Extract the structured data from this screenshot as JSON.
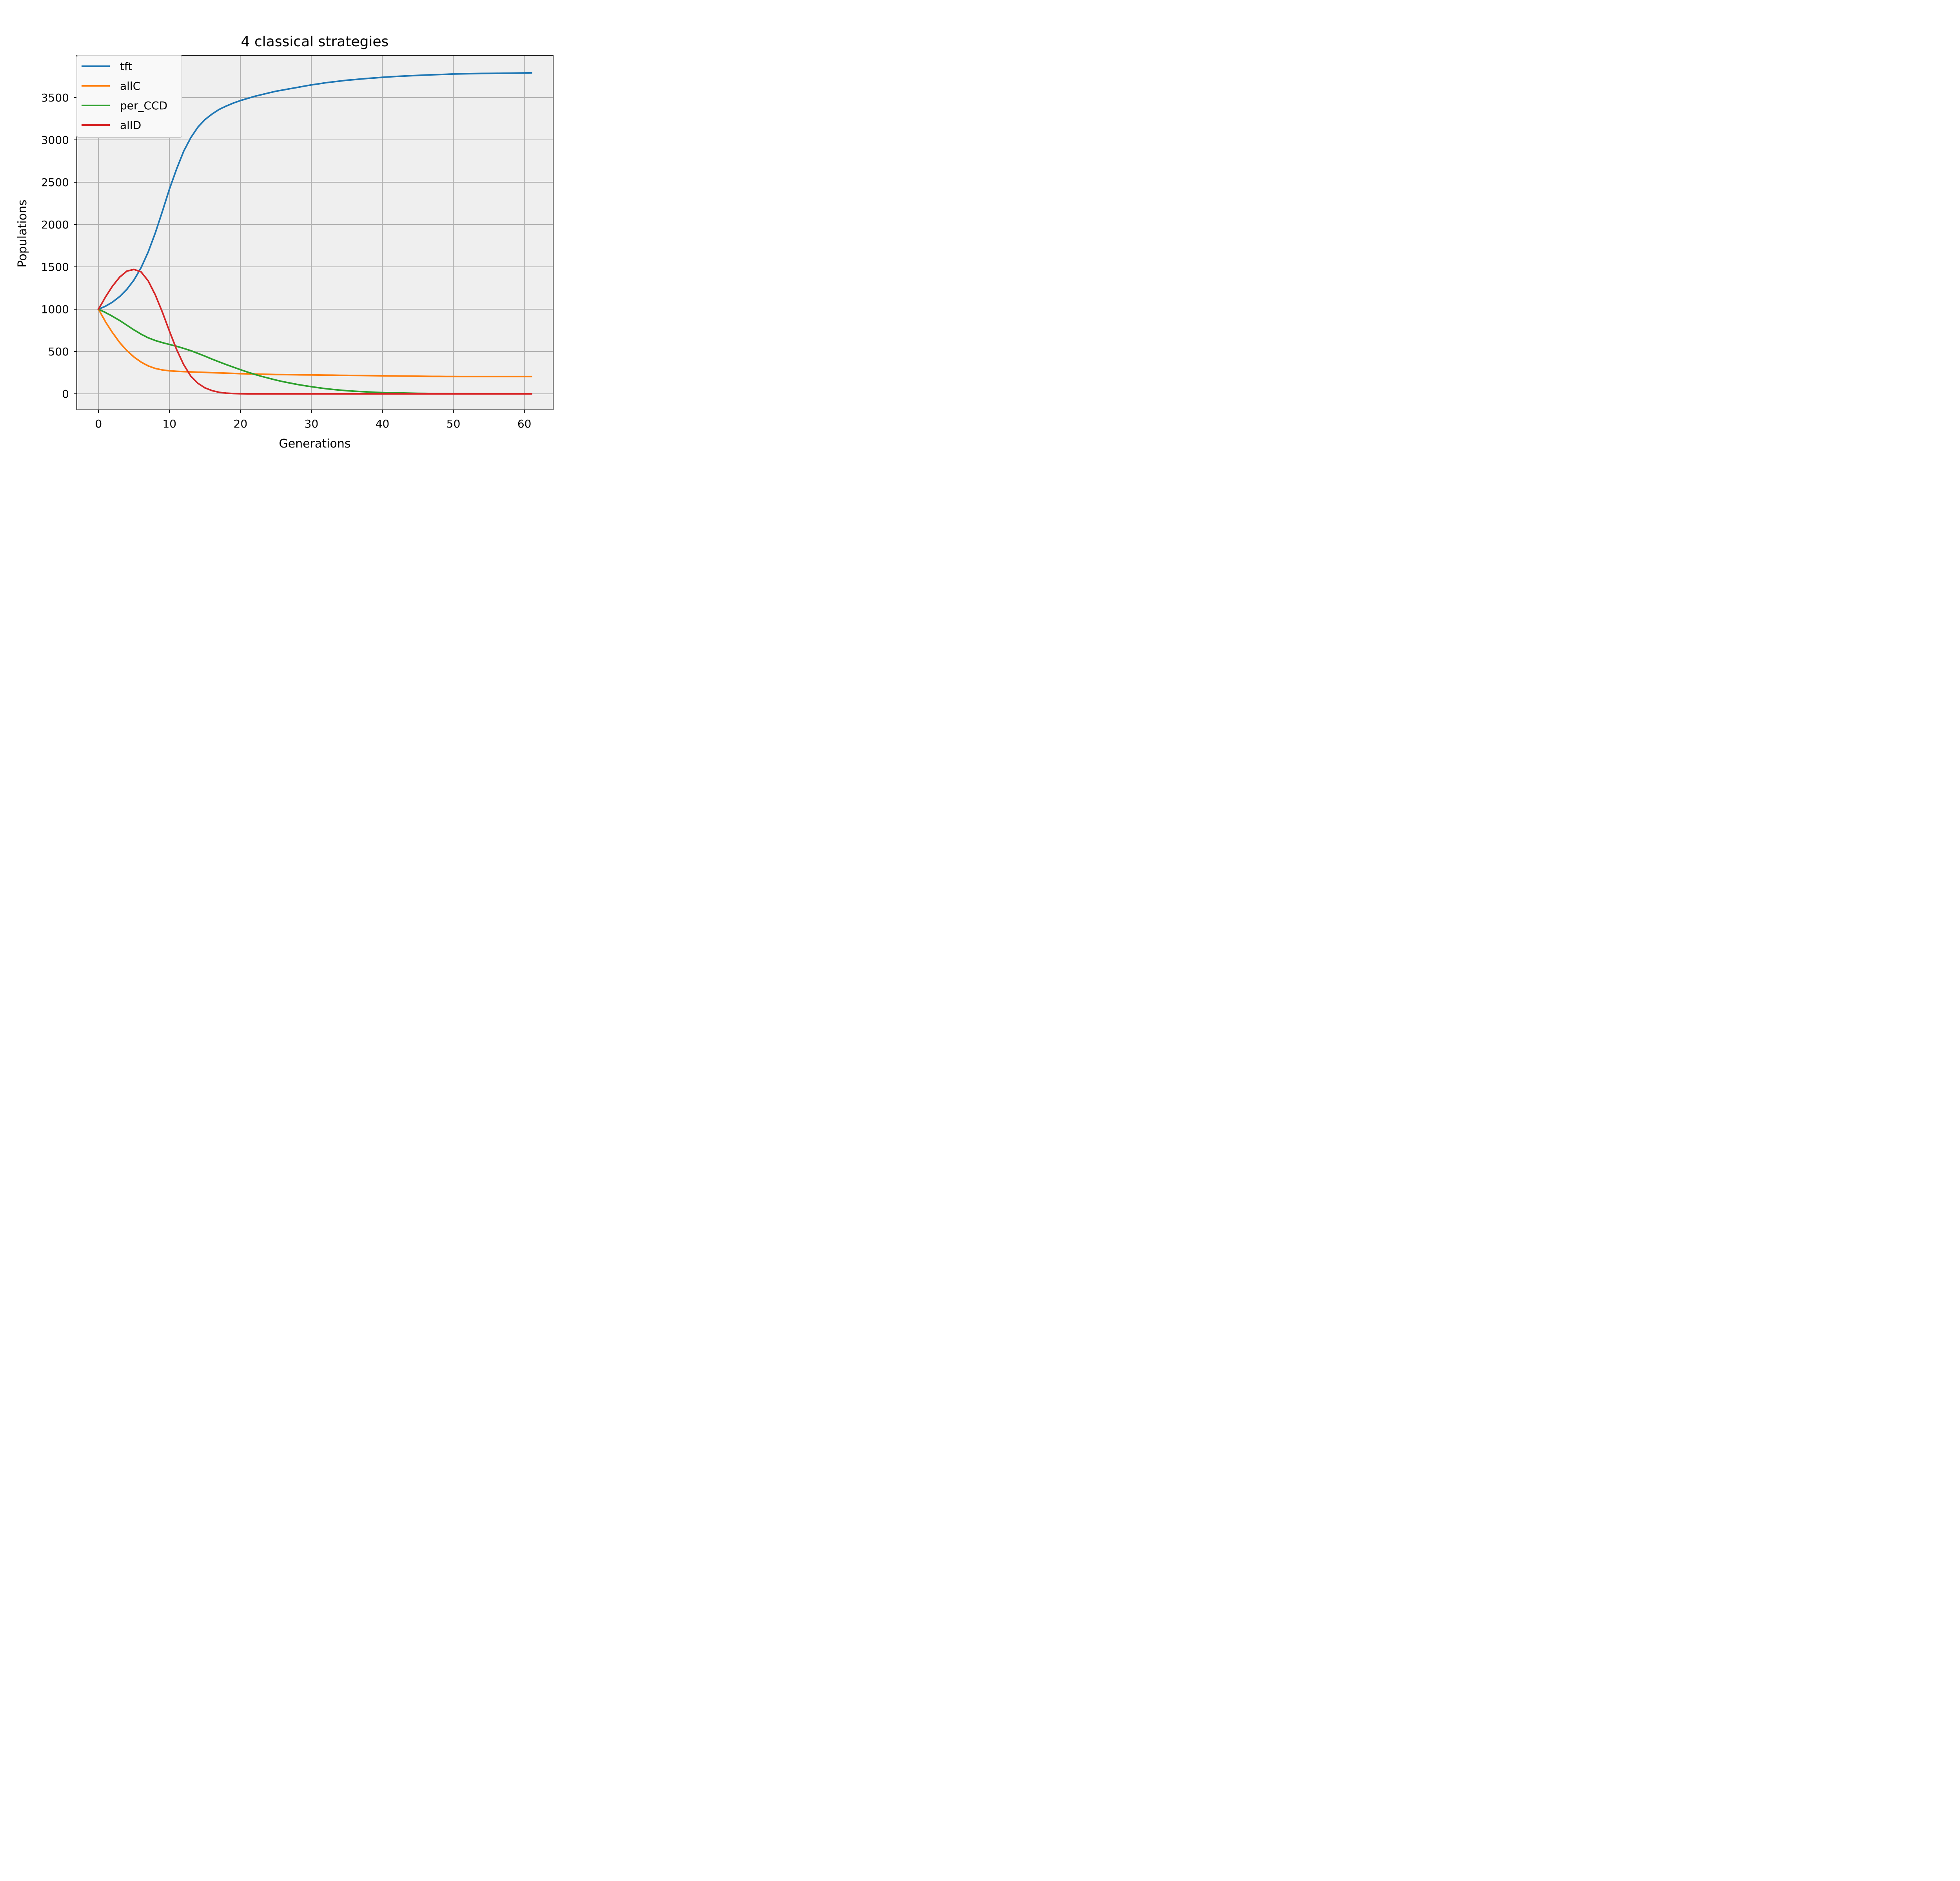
{
  "chart_data": {
    "type": "line",
    "title": "4 classical strategies",
    "xlabel": "Generations",
    "ylabel": "Populations",
    "xlim": [
      -3.05,
      64.05
    ],
    "ylim": [
      -190,
      4000
    ],
    "xticks": [
      0,
      10,
      20,
      30,
      40,
      50,
      60
    ],
    "yticks": [
      0,
      500,
      1000,
      1500,
      2000,
      2500,
      3000,
      3500
    ],
    "grid": true,
    "legend_position": "top-left",
    "colors": {
      "plot_background": "#efefef",
      "grid": "#b0b0b0",
      "legend_background": "#f9f9f9"
    },
    "x": [
      0,
      1,
      2,
      3,
      4,
      5,
      6,
      7,
      8,
      9,
      10,
      11,
      12,
      13,
      14,
      15,
      16,
      17,
      18,
      19,
      20,
      21,
      22,
      23,
      24,
      25,
      26,
      27,
      28,
      29,
      30,
      31,
      32,
      33,
      34,
      35,
      36,
      37,
      38,
      39,
      40,
      41,
      42,
      43,
      44,
      45,
      46,
      47,
      48,
      49,
      50,
      51,
      52,
      53,
      54,
      55,
      56,
      57,
      58,
      59,
      60,
      61
    ],
    "series": [
      {
        "name": "tft",
        "color": "#1f77b4",
        "values": [
          1000,
          1035,
          1085,
          1150,
          1235,
          1345,
          1490,
          1675,
          1900,
          2155,
          2420,
          2655,
          2865,
          3025,
          3150,
          3240,
          3305,
          3360,
          3400,
          3435,
          3465,
          3490,
          3515,
          3535,
          3555,
          3575,
          3590,
          3605,
          3620,
          3635,
          3650,
          3662,
          3675,
          3685,
          3695,
          3705,
          3712,
          3720,
          3727,
          3733,
          3740,
          3745,
          3750,
          3754,
          3758,
          3762,
          3766,
          3769,
          3772,
          3775,
          3778,
          3780,
          3782,
          3784,
          3785,
          3786,
          3787,
          3788,
          3789,
          3790,
          3791,
          3792
        ]
      },
      {
        "name": "allC",
        "color": "#ff7f0e",
        "values": [
          1000,
          850,
          720,
          605,
          510,
          435,
          375,
          330,
          300,
          282,
          272,
          266,
          262,
          259,
          256,
          253,
          250,
          247,
          244,
          241,
          238,
          236,
          234,
          232,
          230,
          228,
          227,
          226,
          225,
          224,
          223,
          222,
          221,
          220,
          219,
          218,
          217,
          216,
          215,
          214,
          213,
          212,
          211,
          210,
          209,
          208,
          207,
          206,
          206,
          205,
          205,
          204,
          204,
          204,
          204,
          204,
          204,
          204,
          204,
          204,
          204,
          204
        ]
      },
      {
        "name": "per_CCD",
        "color": "#2ca02c",
        "values": [
          1000,
          960,
          915,
          865,
          810,
          755,
          705,
          662,
          630,
          605,
          583,
          562,
          537,
          510,
          478,
          445,
          410,
          377,
          345,
          315,
          285,
          257,
          230,
          206,
          184,
          163,
          144,
          127,
          111,
          97,
          84,
          72,
          61,
          52,
          44,
          37,
          31,
          26,
          22,
          18,
          15,
          13,
          11,
          9,
          7,
          6,
          5,
          4,
          3,
          3,
          2,
          2,
          2,
          1,
          1,
          1,
          1,
          1,
          1,
          1,
          0,
          0
        ]
      },
      {
        "name": "allD",
        "color": "#d62728",
        "values": [
          1000,
          1145,
          1275,
          1380,
          1450,
          1470,
          1440,
          1335,
          1170,
          965,
          740,
          525,
          345,
          210,
          125,
          70,
          38,
          18,
          8,
          3,
          1,
          0,
          0,
          0,
          0,
          0,
          0,
          0,
          0,
          0,
          0,
          0,
          0,
          0,
          0,
          0,
          0,
          0,
          0,
          0,
          0,
          0,
          0,
          0,
          0,
          0,
          0,
          0,
          0,
          0,
          0,
          0,
          0,
          0,
          0,
          0,
          0,
          0,
          0,
          0,
          0,
          0
        ]
      }
    ]
  }
}
